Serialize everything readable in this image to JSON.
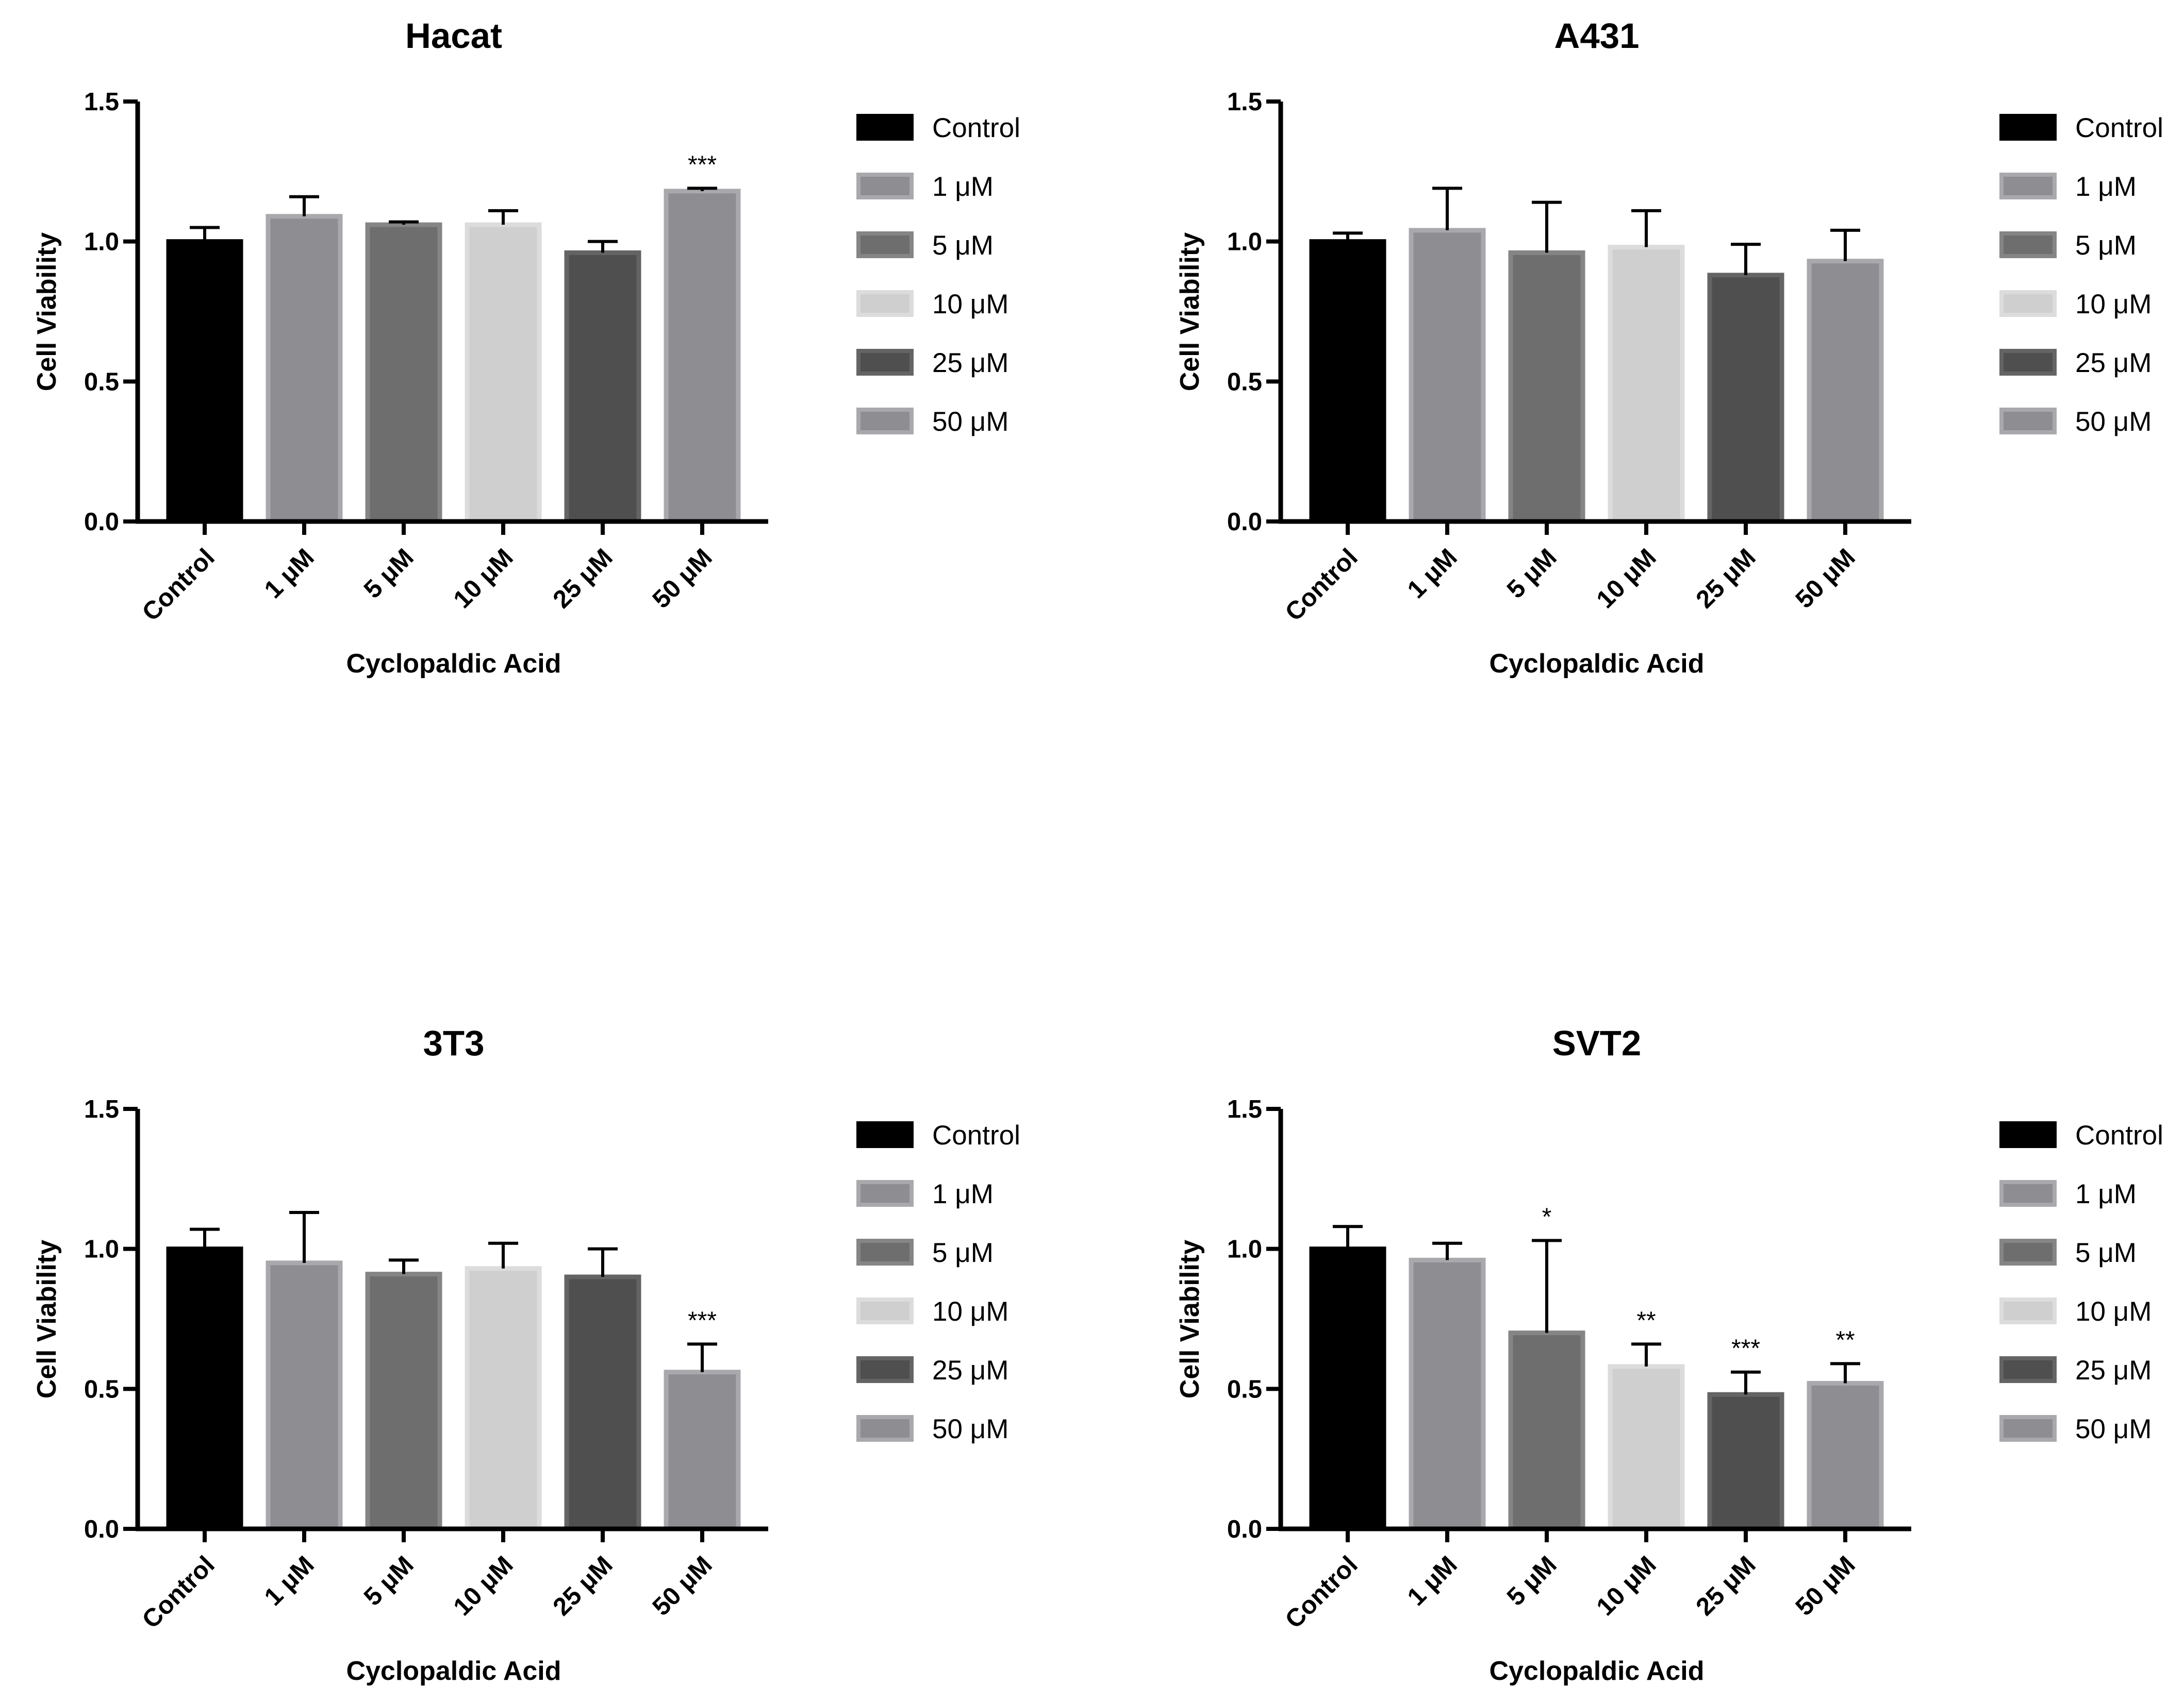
{
  "chart_data": [
    {
      "type": "bar",
      "title": "Hacat",
      "xlabel": "Cyclopaldic Acid",
      "ylabel": "Cell Viability",
      "ylim": [
        0,
        1.5
      ],
      "yticks": [
        "0.0",
        "0.5",
        "1.0",
        "1.5"
      ],
      "categories": [
        "Control",
        "1 μM",
        "5 μM",
        "10 μM",
        "25 μM",
        "50 μM"
      ],
      "values": [
        1.0,
        1.09,
        1.06,
        1.06,
        0.96,
        1.18
      ],
      "errors": [
        0.05,
        0.07,
        0.01,
        0.05,
        0.04,
        0.01
      ],
      "significance": [
        "",
        "",
        "",
        "",
        "",
        "***"
      ],
      "legend": [
        "Control",
        "1 μM",
        "5 μM",
        "10 μM",
        "25 μM",
        "50 μM"
      ],
      "legend_position": "right"
    },
    {
      "type": "bar",
      "title": "A431",
      "xlabel": "Cyclopaldic Acid",
      "ylabel": "Cell Viability",
      "ylim": [
        0,
        1.5
      ],
      "yticks": [
        "0.0",
        "0.5",
        "1.0",
        "1.5"
      ],
      "categories": [
        "Control",
        "1 μM",
        "5 μM",
        "10 μM",
        "25 μM",
        "50 μM"
      ],
      "values": [
        1.0,
        1.04,
        0.96,
        0.98,
        0.88,
        0.93
      ],
      "errors": [
        0.03,
        0.15,
        0.18,
        0.13,
        0.11,
        0.11
      ],
      "significance": [
        "",
        "",
        "",
        "",
        "",
        ""
      ],
      "legend": [
        "Control",
        "1 μM",
        "5 μM",
        "10 μM",
        "25 μM",
        "50 μM"
      ],
      "legend_position": "right"
    },
    {
      "type": "bar",
      "title": "3T3",
      "xlabel": "Cyclopaldic Acid",
      "ylabel": "Cell Viability",
      "ylim": [
        0,
        1.5
      ],
      "yticks": [
        "0.0",
        "0.5",
        "1.0",
        "1.5"
      ],
      "categories": [
        "Control",
        "1 μM",
        "5 μM",
        "10 μM",
        "25 μM",
        "50 μM"
      ],
      "values": [
        1.0,
        0.95,
        0.91,
        0.93,
        0.9,
        0.56
      ],
      "errors": [
        0.07,
        0.18,
        0.05,
        0.09,
        0.1,
        0.1
      ],
      "significance": [
        "",
        "",
        "",
        "",
        "",
        "***"
      ],
      "legend": [
        "Control",
        "1 μM",
        "5 μM",
        "10 μM",
        "25 μM",
        "50 μM"
      ],
      "legend_position": "right"
    },
    {
      "type": "bar",
      "title": "SVT2",
      "xlabel": "Cyclopaldic Acid",
      "ylabel": "Cell Viability",
      "ylim": [
        0,
        1.5
      ],
      "yticks": [
        "0.0",
        "0.5",
        "1.0",
        "1.5"
      ],
      "categories": [
        "Control",
        "1 μM",
        "5 μM",
        "10 μM",
        "25 μM",
        "50 μM"
      ],
      "values": [
        1.0,
        0.96,
        0.7,
        0.58,
        0.48,
        0.52
      ],
      "errors": [
        0.08,
        0.06,
        0.33,
        0.08,
        0.08,
        0.07
      ],
      "significance": [
        "",
        "",
        "*",
        "**",
        "***",
        "**"
      ],
      "legend": [
        "Control",
        "1 μM",
        "5 μM",
        "10 μM",
        "25 μM",
        "50 μM"
      ],
      "legend_position": "right"
    }
  ],
  "colors": {
    "bar_fills": [
      "#000000",
      "#8e8e92",
      "#6e6e6e",
      "#cfcfcf",
      "#4f4f4f",
      "#8e8e92"
    ],
    "bar_edges": [
      "#000000",
      "#a9a9ad",
      "#858585",
      "#dcdcdc",
      "#646464",
      "#a9a9ad"
    ],
    "axis": "#000000"
  }
}
